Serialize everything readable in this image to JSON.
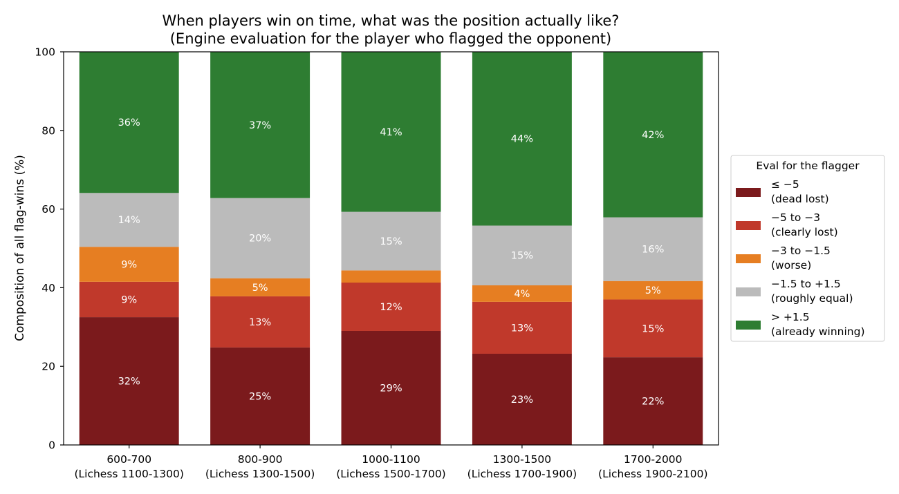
{
  "chart_data": {
    "type": "bar",
    "stacked": true,
    "title": "When players win on time, what was the position actually like?",
    "subtitle": "(Engine evaluation for the player who flagged the opponent)",
    "xlabel": "",
    "ylabel": "Composition of all flag-wins (%)",
    "ylim": [
      0,
      100
    ],
    "yticks": [
      "0",
      "20",
      "40",
      "60",
      "80",
      "100"
    ],
    "grid": false,
    "categories": [
      [
        "600-700",
        "(Lichess 1100-1300)"
      ],
      [
        "800-900",
        "(Lichess 1300-1500)"
      ],
      [
        "1000-1100",
        "(Lichess 1500-1700)"
      ],
      [
        "1300-1500",
        "(Lichess 1700-1900)"
      ],
      [
        "1700-2000",
        "(Lichess 1900-2100)"
      ]
    ],
    "legend": {
      "title": "Eval for the flagger",
      "placement": "right, outside plot"
    },
    "series": [
      {
        "name": [
          "≤ −5",
          "(dead lost)"
        ],
        "color": "#7b1a1c",
        "values": [
          32.5,
          24.8,
          29.0,
          23.2,
          22.3
        ],
        "labels": [
          "32%",
          "25%",
          "29%",
          "23%",
          "22%"
        ]
      },
      {
        "name": [
          "−5 to −3",
          "(clearly lost)"
        ],
        "color": "#c0392b",
        "values": [
          9.0,
          13.0,
          12.3,
          13.2,
          14.7
        ],
        "labels": [
          "9%",
          "13%",
          "12%",
          "13%",
          "15%"
        ]
      },
      {
        "name": [
          "−3 to −1.5",
          "(worse)"
        ],
        "color": "#e67e22",
        "values": [
          8.9,
          4.6,
          3.1,
          4.2,
          4.7
        ],
        "labels": [
          "9%",
          "5%",
          "",
          "4%",
          "5%"
        ]
      },
      {
        "name": [
          "−1.5 to +1.5",
          "(roughly equal)"
        ],
        "color": "#bbbbbb",
        "values": [
          13.7,
          20.4,
          14.9,
          15.2,
          16.2
        ],
        "labels": [
          "14%",
          "20%",
          "15%",
          "15%",
          "16%"
        ]
      },
      {
        "name": [
          "> +1.5",
          "(already winning)"
        ],
        "color": "#2e7d32",
        "values": [
          35.9,
          37.2,
          40.7,
          44.2,
          42.1
        ],
        "labels": [
          "36%",
          "37%",
          "41%",
          "44%",
          "42%"
        ]
      }
    ]
  }
}
